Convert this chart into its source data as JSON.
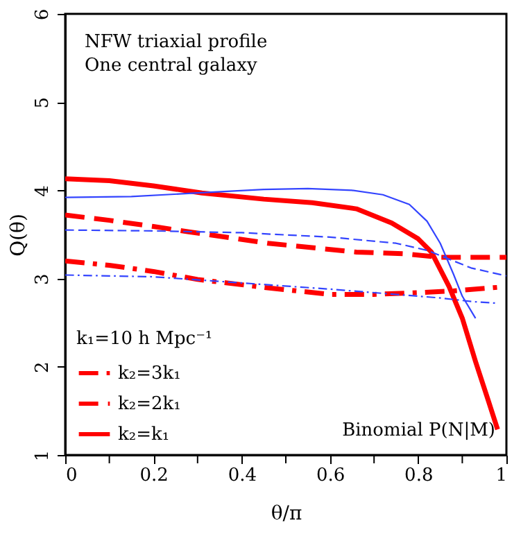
{
  "chart_data": {
    "type": "line",
    "xlabel": "θ/π",
    "ylabel": "Q(θ)",
    "legend_title": "k₁=10 h Mpc⁻¹",
    "legend": "bottom left",
    "grid": false,
    "annotations": [
      "NFW triaxial profile",
      "One central galaxy",
      "Binomial P(N|M)"
    ],
    "xlim": [
      0,
      1
    ],
    "ylim": [
      1,
      6
    ],
    "xticks": [
      0,
      {
        "value": 0.1,
        "label": null
      },
      0.2,
      {
        "value": 0.3,
        "label": null
      },
      0.4,
      {
        "value": 0.5,
        "label": null
      },
      0.6,
      {
        "value": 0.7,
        "label": null
      },
      0.8,
      {
        "value": 0.9,
        "label": null
      },
      1
    ],
    "yticks": [
      1,
      2,
      3,
      4,
      5,
      6
    ],
    "series": [
      {
        "name": "k₂=3k₁",
        "color": "#ff0000",
        "line_style": "dashdot",
        "x": [
          0,
          0.1,
          0.2,
          0.3,
          0.45,
          0.6,
          0.7,
          0.8,
          0.88,
          0.98
        ],
        "values": [
          3.2,
          3.15,
          3.08,
          2.99,
          2.9,
          2.82,
          2.82,
          2.84,
          2.86,
          2.9
        ]
      },
      {
        "name": "k₂=2k₁",
        "color": "#ff0000",
        "line_style": "dashed",
        "x": [
          0,
          0.1,
          0.2,
          0.28,
          0.46,
          0.66,
          0.77,
          0.85,
          1.0
        ],
        "values": [
          3.72,
          3.66,
          3.59,
          3.53,
          3.4,
          3.3,
          3.28,
          3.24,
          3.24
        ]
      },
      {
        "name": "k₂=k₁",
        "color": "#ff0000",
        "line_style": "solid",
        "x": [
          0,
          0.1,
          0.2,
          0.31,
          0.45,
          0.56,
          0.66,
          0.74,
          0.8,
          0.83,
          0.87,
          0.9,
          0.93,
          0.96,
          0.98
        ],
        "values": [
          4.13,
          4.11,
          4.05,
          3.97,
          3.9,
          3.86,
          3.79,
          3.63,
          3.45,
          3.3,
          2.91,
          2.55,
          2.06,
          1.6,
          1.29
        ]
      },
      {
        "color": "#3344ff",
        "line_style": "solid",
        "x": [
          0,
          0.15,
          0.3,
          0.45,
          0.55,
          0.65,
          0.72,
          0.78,
          0.82,
          0.85,
          0.88,
          0.9,
          0.93
        ],
        "values": [
          3.92,
          3.93,
          3.97,
          4.01,
          4.02,
          4.0,
          3.95,
          3.84,
          3.65,
          3.4,
          3.05,
          2.8,
          2.55
        ]
      },
      {
        "color": "#3344ff",
        "line_style": "dashed",
        "x": [
          0,
          0.2,
          0.4,
          0.6,
          0.75,
          0.82,
          0.87,
          0.92,
          1.0
        ],
        "values": [
          3.55,
          3.54,
          3.52,
          3.47,
          3.4,
          3.32,
          3.22,
          3.12,
          3.03
        ]
      },
      {
        "color": "#3344ff",
        "line_style": "dashdot",
        "x": [
          0,
          0.2,
          0.4,
          0.6,
          0.75,
          0.85,
          0.92,
          0.98
        ],
        "values": [
          3.04,
          3.02,
          2.95,
          2.88,
          2.82,
          2.78,
          2.74,
          2.72
        ]
      }
    ]
  }
}
